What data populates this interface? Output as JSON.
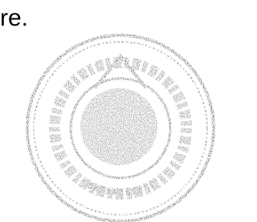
{
  "text": "re."
}
